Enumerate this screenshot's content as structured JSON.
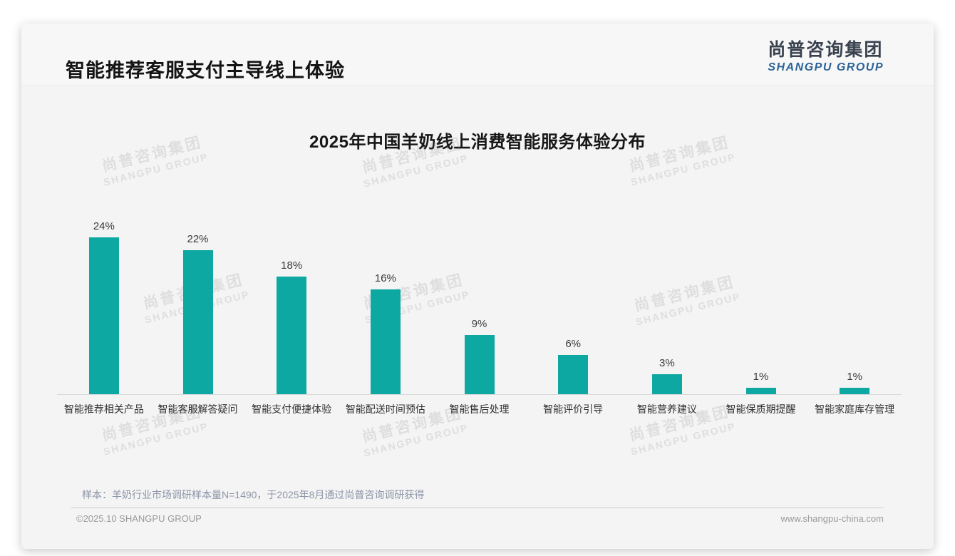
{
  "page": {
    "title": "智能推荐客服支付主导线上体验",
    "logo": {
      "cn": "尚普咨询集团",
      "en": "SHANGPU GROUP"
    },
    "watermark": {
      "cn": "尚普咨询集团",
      "en": "SHANGPU GROUP"
    },
    "sample_note": "样本：羊奶行业市场调研样本量N=1490，于2025年8月通过尚普咨询调研获得",
    "footer_left": "©2025.10 SHANGPU GROUP",
    "footer_right": "www.shangpu-china.com"
  },
  "colors": {
    "bar": "#0ca8a1",
    "logo_en": "#2d6497",
    "card_bg": "#f4f4f5"
  },
  "chart_data": {
    "type": "bar",
    "title": "2025年中国羊奶线上消费智能服务体验分布",
    "categories": [
      "智能推荐相关产品",
      "智能客服解答疑问",
      "智能支付便捷体验",
      "智能配送时间预估",
      "智能售后处理",
      "智能评价引导",
      "智能营养建议",
      "智能保质期提醒",
      "智能家庭库存管理"
    ],
    "values": [
      24,
      22,
      18,
      16,
      9,
      6,
      3,
      1,
      1
    ],
    "data_labels": [
      "24%",
      "22%",
      "18%",
      "16%",
      "9%",
      "6%",
      "3%",
      "1%",
      "1%"
    ],
    "unit": "%",
    "xlabel": "",
    "ylabel": "",
    "ylim": [
      0,
      26
    ],
    "grid": false,
    "legend": false
  }
}
